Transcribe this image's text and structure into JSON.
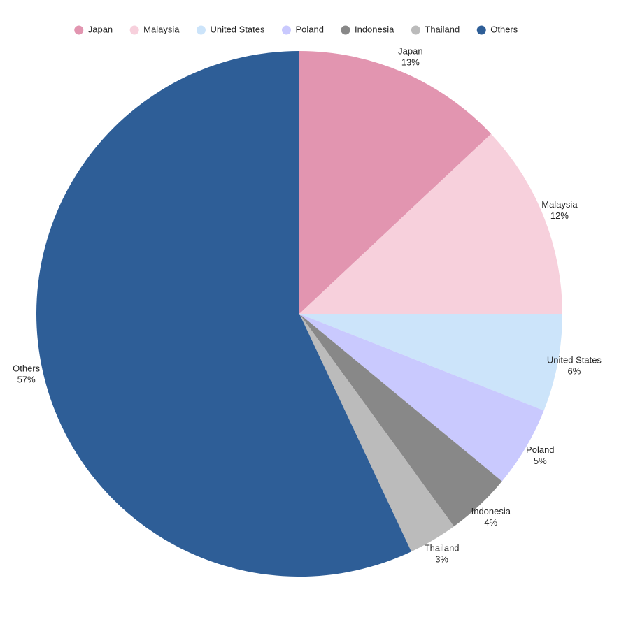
{
  "chart_data": {
    "type": "pie",
    "categories": [
      "Japan",
      "Malaysia",
      "United States",
      "Poland",
      "Indonesia",
      "Thailand",
      "Others"
    ],
    "values": [
      13,
      12,
      6,
      5,
      4,
      3,
      57
    ],
    "value_labels": [
      "13%",
      "12%",
      "6%",
      "5%",
      "4%",
      "3%",
      "57%"
    ],
    "colors": [
      "#e295b0",
      "#f7d0dc",
      "#cce4fa",
      "#c9c9fe",
      "#888888",
      "#bbbbbb",
      "#2e5e97"
    ],
    "legend": "top"
  }
}
